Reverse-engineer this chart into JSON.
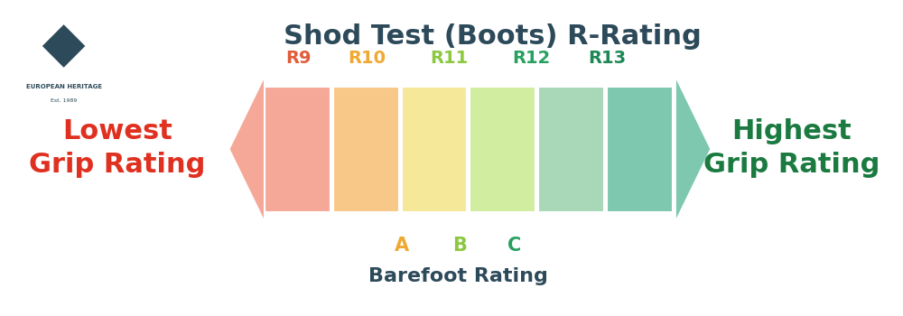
{
  "title": "Shod Test (Boots) R-Rating",
  "title_color": "#2d4a5a",
  "title_fontsize": 22,
  "bg_color": "#ffffff",
  "r_ratings": [
    "R9",
    "R10",
    "R11",
    "R12",
    "R13"
  ],
  "r_rating_colors": [
    "#e05c3a",
    "#f0a830",
    "#8cc840",
    "#28a060",
    "#1e8855"
  ],
  "bar_colors": [
    "#f5a898",
    "#f8c888",
    "#f5e898",
    "#d0eda0",
    "#a8d8b8",
    "#7ec8b0"
  ],
  "left_label_lines": [
    "Lowest",
    "Grip Rating"
  ],
  "left_label_color": "#e03020",
  "right_label_lines": [
    "Highest",
    "Grip Rating"
  ],
  "right_label_color": "#1a7a40",
  "label_fontsize": 22,
  "barefoot_letters": [
    "A",
    "B",
    "C"
  ],
  "barefoot_letter_colors": [
    "#f0a830",
    "#8cc840",
    "#28a060"
  ],
  "barefoot_label": "Barefoot Rating",
  "barefoot_label_color": "#2d4a5a",
  "barefoot_fontsize": 16,
  "arrow_left_color": "#f5a898",
  "arrow_right_color": "#7ec8b0"
}
